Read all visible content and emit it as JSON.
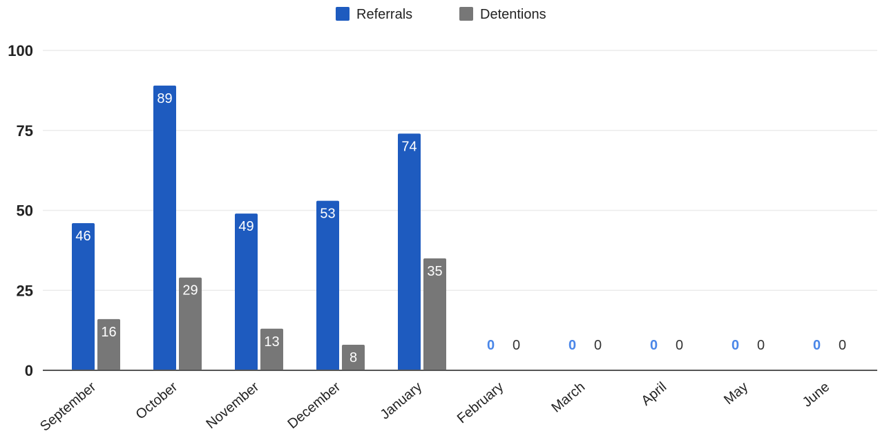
{
  "colors": {
    "referrals": "#1e5bbf",
    "detentions": "#777777",
    "referrals_zero_label": "#4a86e8",
    "detentions_zero_label": "#333333",
    "inside_label": "#ffffff"
  },
  "chart_data": {
    "type": "bar",
    "title": "",
    "xlabel": "",
    "ylabel": "",
    "ylim": [
      0,
      100
    ],
    "yticks": [
      "0",
      "25",
      "50",
      "75",
      "100"
    ],
    "grid": true,
    "legend_position": "top",
    "categories": [
      "September",
      "October",
      "November",
      "December",
      "January",
      "February",
      "March",
      "April",
      "May",
      "June"
    ],
    "series": [
      {
        "name": "Referrals",
        "values": [
          46,
          89,
          49,
          53,
          74,
          0,
          0,
          0,
          0,
          0
        ],
        "labels": [
          "46",
          "89",
          "49",
          "53",
          "74",
          "0",
          "0",
          "0",
          "0",
          "0"
        ]
      },
      {
        "name": "Detentions",
        "values": [
          16,
          29,
          13,
          8,
          35,
          0,
          0,
          0,
          0,
          0
        ],
        "labels": [
          "16",
          "29",
          "13",
          "8",
          "35",
          "0",
          "0",
          "0",
          "0",
          "0"
        ]
      }
    ]
  }
}
